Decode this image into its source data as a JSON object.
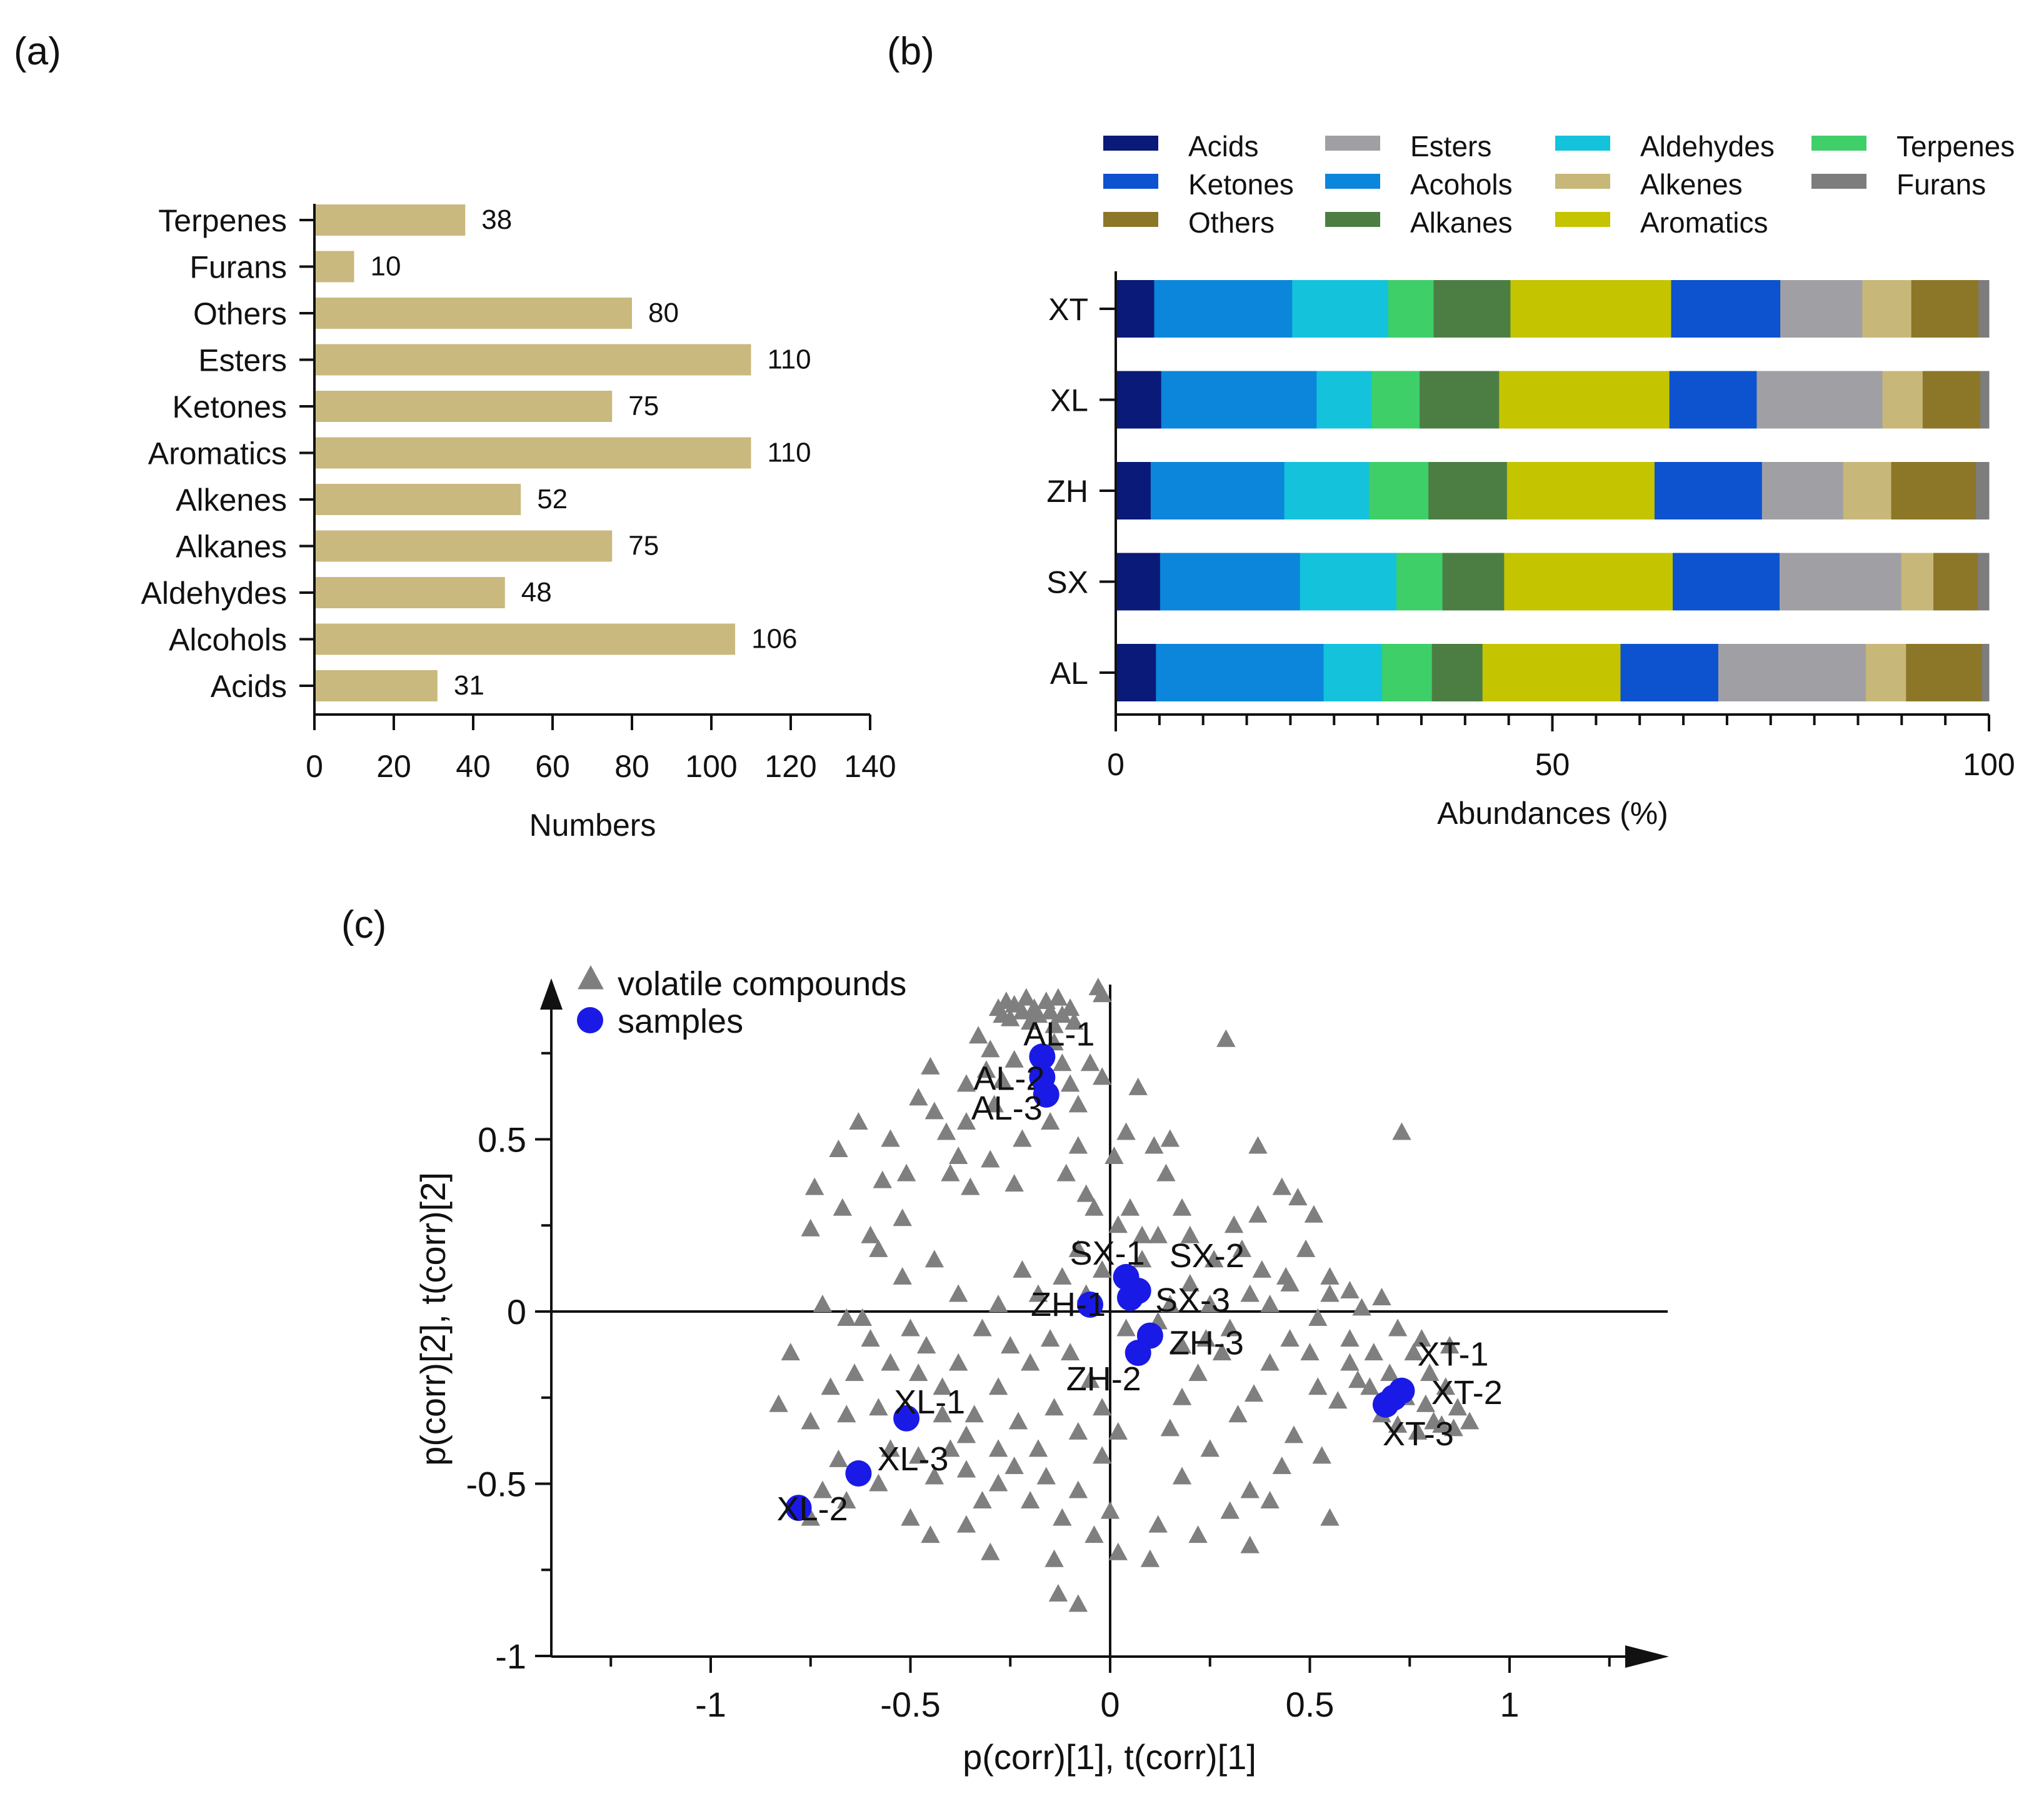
{
  "chart_data": [
    {
      "panel_label": "(a)",
      "type": "bar",
      "orientation": "horizontal",
      "categories": [
        "Terpenes",
        "Furans",
        "Others",
        "Esters",
        "Ketones",
        "Aromatics",
        "Alkenes",
        "Alkanes",
        "Aldehydes",
        "Alcohols",
        "Acids"
      ],
      "values": [
        38,
        10,
        80,
        110,
        75,
        110,
        52,
        75,
        48,
        106,
        31
      ],
      "value_labels": [
        "38",
        "10",
        "80",
        "110",
        "75",
        "110",
        "52",
        "75",
        "48",
        "106",
        "31"
      ],
      "bar_color": "#c9b97e",
      "xlabel": "Numbers",
      "xlim": [
        0,
        140
      ],
      "xticks": [
        "0",
        "20",
        "40",
        "60",
        "80",
        "100",
        "120",
        "140"
      ]
    },
    {
      "panel_label": "(b)",
      "type": "bar",
      "stacked": true,
      "orientation": "horizontal",
      "categories": [
        "XT",
        "XL",
        "ZH",
        "SX",
        "AL"
      ],
      "series": [
        {
          "name": "Acids",
          "color": "#0a1a78",
          "values": [
            4.4,
            5.2,
            4.0,
            5.1,
            4.6
          ]
        },
        {
          "name": "Acohols",
          "color": "#0b86db",
          "values": [
            15.8,
            17.8,
            15.3,
            16.1,
            19.2
          ]
        },
        {
          "name": "Aldehydes",
          "color": "#14c2dc",
          "values": [
            11.0,
            6.3,
            9.7,
            11.1,
            6.7
          ]
        },
        {
          "name": "Terpenes",
          "color": "#3ecf68",
          "values": [
            5.2,
            5.5,
            6.8,
            5.3,
            5.7
          ]
        },
        {
          "name": "Alkanes",
          "color": "#4c7e44",
          "values": [
            8.8,
            9.1,
            9.0,
            7.1,
            5.8
          ]
        },
        {
          "name": "Aromatics",
          "color": "#c4c400",
          "values": [
            18.4,
            19.5,
            16.9,
            19.4,
            15.8
          ]
        },
        {
          "name": "Ketones",
          "color": "#0d52cf",
          "values": [
            12.5,
            10.0,
            12.3,
            12.3,
            11.2
          ]
        },
        {
          "name": "Esters",
          "color": "#a0a0a4",
          "values": [
            9.4,
            14.4,
            9.3,
            14.0,
            16.9
          ]
        },
        {
          "name": "Alkenes",
          "color": "#c7b87a",
          "values": [
            5.6,
            4.6,
            5.5,
            3.7,
            4.6
          ]
        },
        {
          "name": "Others",
          "color": "#8c7628",
          "values": [
            7.7,
            6.6,
            9.7,
            5.1,
            8.7
          ]
        },
        {
          "name": "Furans",
          "color": "#7d7d7d",
          "values": [
            1.2,
            1.0,
            1.5,
            1.3,
            0.8
          ]
        }
      ],
      "legend_order": [
        "Acids",
        "Ketones",
        "Others",
        "Esters",
        "Acohols",
        "Alkanes",
        "Aldehydes",
        "Alkenes",
        "Aromatics",
        "Terpenes",
        "Furans"
      ],
      "xlabel": "Abundances (%)",
      "xlim": [
        0,
        100
      ],
      "xticks": [
        "0",
        "50",
        "100"
      ]
    },
    {
      "panel_label": "(c)",
      "type": "scatter",
      "xlabel": "p(corr)[1], t(corr)[1]",
      "ylabel": "p(corr)[2], t(corr)[2]",
      "xlim": [
        -1.4,
        1.4
      ],
      "ylim": [
        -1,
        1
      ],
      "xticks": [
        -1,
        -0.5,
        0,
        0.5,
        1
      ],
      "xtick_labels": [
        "-1",
        "-0.5",
        "0",
        "0.5",
        "1"
      ],
      "yticks": [
        -1,
        -0.5,
        0,
        0.5
      ],
      "ytick_labels": [
        "-1",
        "-0.5",
        "0",
        "0.5"
      ],
      "legend": [
        {
          "label": "volatile compounds",
          "marker": "triangle",
          "color": "#7f7f7f"
        },
        {
          "label": "samples",
          "marker": "circle",
          "color": "#1a1ae6"
        }
      ],
      "samples": [
        {
          "label": "AL-1",
          "x": -0.17,
          "y": 0.74
        },
        {
          "label": "AL-2",
          "x": -0.17,
          "y": 0.68
        },
        {
          "label": "AL-3",
          "x": -0.16,
          "y": 0.63
        },
        {
          "label": "SX-1",
          "x": 0.04,
          "y": 0.1
        },
        {
          "label": "SX-2",
          "x": 0.07,
          "y": 0.06
        },
        {
          "label": "SX-3",
          "x": 0.05,
          "y": 0.04
        },
        {
          "label": "ZH-1",
          "x": -0.05,
          "y": 0.02
        },
        {
          "label": "ZH-2",
          "x": 0.07,
          "y": -0.12
        },
        {
          "label": "ZH-3",
          "x": 0.1,
          "y": -0.07
        },
        {
          "label": "XT-1",
          "x": 0.73,
          "y": -0.23
        },
        {
          "label": "XT-2",
          "x": 0.71,
          "y": -0.25
        },
        {
          "label": "XT-3",
          "x": 0.69,
          "y": -0.27
        },
        {
          "label": "XL-1",
          "x": -0.51,
          "y": -0.31
        },
        {
          "label": "XL-2",
          "x": -0.78,
          "y": -0.57
        },
        {
          "label": "XL-3",
          "x": -0.63,
          "y": -0.47
        }
      ],
      "volatile_compounds": [
        [
          -0.28,
          0.88
        ],
        [
          -0.27,
          0.86
        ],
        [
          -0.26,
          0.9
        ],
        [
          -0.25,
          0.85
        ],
        [
          -0.24,
          0.89
        ],
        [
          -0.22,
          0.87
        ],
        [
          -0.21,
          0.91
        ],
        [
          -0.2,
          0.84
        ],
        [
          -0.19,
          0.88
        ],
        [
          -0.18,
          0.86
        ],
        [
          -0.16,
          0.9
        ],
        [
          -0.15,
          0.87
        ],
        [
          -0.14,
          0.83
        ],
        [
          -0.13,
          0.91
        ],
        [
          -0.12,
          0.86
        ],
        [
          -0.1,
          0.88
        ],
        [
          -0.09,
          0.84
        ],
        [
          -0.03,
          0.94
        ],
        [
          -0.02,
          0.92
        ],
        [
          0.29,
          0.79
        ],
        [
          -0.33,
          0.8
        ],
        [
          -0.3,
          0.76
        ],
        [
          -0.31,
          0.7
        ],
        [
          -0.27,
          0.67
        ],
        [
          -0.24,
          0.73
        ],
        [
          -0.36,
          0.66
        ],
        [
          -0.45,
          0.71
        ],
        [
          -0.48,
          0.62
        ],
        [
          -0.44,
          0.58
        ],
        [
          -0.41,
          0.52
        ],
        [
          -0.36,
          0.55
        ],
        [
          -0.38,
          0.45
        ],
        [
          -0.29,
          0.6
        ],
        [
          -0.14,
          0.78
        ],
        [
          -0.12,
          0.72
        ],
        [
          -0.1,
          0.66
        ],
        [
          -0.08,
          0.6
        ],
        [
          -0.05,
          0.72
        ],
        [
          -0.02,
          0.68
        ],
        [
          0.07,
          0.65
        ],
        [
          -0.63,
          0.55
        ],
        [
          -0.55,
          0.5
        ],
        [
          -0.51,
          0.4
        ],
        [
          -0.57,
          0.38
        ],
        [
          -0.68,
          0.47
        ],
        [
          -0.74,
          0.36
        ],
        [
          -0.75,
          0.24
        ],
        [
          -0.67,
          0.3
        ],
        [
          -0.6,
          0.22
        ],
        [
          -0.52,
          0.27
        ],
        [
          -0.4,
          0.4
        ],
        [
          -0.35,
          0.36
        ],
        [
          -0.3,
          0.44
        ],
        [
          -0.24,
          0.37
        ],
        [
          -0.22,
          0.5
        ],
        [
          -0.15,
          0.55
        ],
        [
          -0.08,
          0.48
        ],
        [
          -0.11,
          0.4
        ],
        [
          -0.06,
          0.34
        ],
        [
          0.01,
          0.45
        ],
        [
          0.04,
          0.52
        ],
        [
          0.11,
          0.48
        ],
        [
          0.15,
          0.5
        ],
        [
          0.14,
          0.4
        ],
        [
          0.18,
          0.3
        ],
        [
          0.12,
          0.22
        ],
        [
          0.2,
          0.22
        ],
        [
          0.26,
          0.15
        ],
        [
          0.31,
          0.25
        ],
        [
          0.37,
          0.28
        ],
        [
          0.37,
          0.48
        ],
        [
          0.43,
          0.36
        ],
        [
          0.47,
          0.33
        ],
        [
          0.51,
          0.28
        ],
        [
          0.73,
          0.52
        ],
        [
          0.55,
          0.1
        ],
        [
          0.6,
          0.06
        ],
        [
          0.63,
          0.01
        ],
        [
          0.68,
          0.04
        ],
        [
          0.72,
          -0.05
        ],
        [
          0.76,
          -0.12
        ],
        [
          0.8,
          -0.18
        ],
        [
          0.84,
          -0.22
        ],
        [
          0.87,
          -0.28
        ],
        [
          0.9,
          -0.32
        ],
        [
          0.85,
          -0.1
        ],
        [
          0.78,
          -0.08
        ],
        [
          0.83,
          -0.33
        ],
        [
          0.77,
          -0.35
        ],
        [
          0.72,
          -0.33
        ],
        [
          0.68,
          -0.3
        ],
        [
          0.65,
          -0.22
        ],
        [
          0.6,
          -0.15
        ],
        [
          0.57,
          -0.26
        ],
        [
          0.52,
          -0.22
        ],
        [
          0.5,
          -0.12
        ],
        [
          0.45,
          -0.08
        ],
        [
          0.4,
          -0.15
        ],
        [
          0.36,
          -0.24
        ],
        [
          0.32,
          -0.3
        ],
        [
          0.46,
          -0.36
        ],
        [
          0.43,
          -0.45
        ],
        [
          0.53,
          -0.42
        ],
        [
          0.4,
          -0.55
        ],
        [
          0.55,
          -0.6
        ],
        [
          0.35,
          -0.52
        ],
        [
          0.25,
          -0.4
        ],
        [
          0.3,
          -0.58
        ],
        [
          0.22,
          -0.65
        ],
        [
          0.35,
          -0.68
        ],
        [
          0.18,
          -0.48
        ],
        [
          0.12,
          -0.62
        ],
        [
          0.1,
          -0.72
        ],
        [
          0.02,
          -0.7
        ],
        [
          0.15,
          -0.34
        ],
        [
          0.18,
          -0.25
        ],
        [
          0.22,
          -0.18
        ],
        [
          0.28,
          -0.12
        ],
        [
          0.25,
          0.02
        ],
        [
          0.3,
          -0.05
        ],
        [
          0.35,
          0.05
        ],
        [
          0.4,
          0.02
        ],
        [
          0.44,
          0.1
        ],
        [
          0.38,
          0.12
        ],
        [
          0.33,
          0.18
        ],
        [
          0.2,
          0.08
        ],
        [
          0.15,
          0.02
        ],
        [
          0.12,
          -0.03
        ],
        [
          0.18,
          -0.1
        ],
        [
          0.24,
          -0.08
        ],
        [
          -0.08,
          0.18
        ],
        [
          -0.12,
          0.1
        ],
        [
          -0.18,
          0.05
        ],
        [
          -0.22,
          0.12
        ],
        [
          -0.28,
          0.02
        ],
        [
          -0.32,
          -0.05
        ],
        [
          -0.25,
          -0.1
        ],
        [
          -0.2,
          -0.15
        ],
        [
          -0.15,
          -0.08
        ],
        [
          -0.1,
          -0.12
        ],
        [
          -0.05,
          -0.2
        ],
        [
          -0.02,
          -0.28
        ],
        [
          -0.08,
          -0.35
        ],
        [
          -0.14,
          -0.28
        ],
        [
          -0.18,
          -0.4
        ],
        [
          -0.23,
          -0.32
        ],
        [
          -0.28,
          -0.22
        ],
        [
          -0.34,
          -0.3
        ],
        [
          -0.38,
          -0.15
        ],
        [
          -0.42,
          -0.22
        ],
        [
          -0.46,
          -0.1
        ],
        [
          -0.5,
          -0.05
        ],
        [
          -0.55,
          -0.15
        ],
        [
          -0.6,
          -0.08
        ],
        [
          -0.64,
          -0.18
        ],
        [
          -0.58,
          -0.28
        ],
        [
          -0.66,
          -0.3
        ],
        [
          -0.7,
          -0.22
        ],
        [
          -0.75,
          -0.32
        ],
        [
          -0.8,
          -0.12
        ],
        [
          -0.83,
          -0.27
        ],
        [
          -0.68,
          -0.43
        ],
        [
          -0.72,
          -0.52
        ],
        [
          -0.75,
          -0.6
        ],
        [
          -0.66,
          -0.55
        ],
        [
          -0.58,
          -0.5
        ],
        [
          -0.55,
          -0.4
        ],
        [
          -0.48,
          -0.42
        ],
        [
          -0.44,
          -0.48
        ],
        [
          -0.4,
          -0.4
        ],
        [
          -0.36,
          -0.46
        ],
        [
          -0.32,
          -0.55
        ],
        [
          -0.28,
          -0.5
        ],
        [
          -0.24,
          -0.45
        ],
        [
          -0.2,
          -0.55
        ],
        [
          -0.16,
          -0.48
        ],
        [
          -0.12,
          -0.6
        ],
        [
          -0.08,
          -0.52
        ],
        [
          -0.04,
          -0.65
        ],
        [
          0.0,
          -0.58
        ],
        [
          -0.36,
          -0.62
        ],
        [
          -0.3,
          -0.7
        ],
        [
          -0.45,
          -0.65
        ],
        [
          -0.5,
          -0.6
        ],
        [
          -0.14,
          -0.72
        ],
        [
          -0.13,
          -0.82
        ],
        [
          -0.08,
          -0.85
        ],
        [
          -0.02,
          -0.42
        ],
        [
          0.02,
          -0.35
        ],
        [
          -0.38,
          0.05
        ],
        [
          -0.44,
          0.15
        ],
        [
          -0.52,
          0.1
        ],
        [
          -0.58,
          0.18
        ],
        [
          -0.66,
          -0.02
        ],
        [
          -0.72,
          0.02
        ],
        [
          -0.62,
          -0.02
        ],
        [
          -0.48,
          -0.18
        ],
        [
          -0.42,
          -0.3
        ],
        [
          -0.36,
          -0.36
        ],
        [
          -0.28,
          -0.4
        ],
        [
          0.05,
          0.3
        ],
        [
          0.08,
          0.22
        ],
        [
          0.02,
          0.25
        ],
        [
          -0.04,
          0.3
        ],
        [
          -0.02,
          0.12
        ],
        [
          0.04,
          -0.05
        ],
        [
          0.08,
          0.15
        ],
        [
          -0.06,
          0.05
        ],
        [
          0.55,
          0.05
        ],
        [
          0.6,
          -0.08
        ],
        [
          0.66,
          -0.12
        ],
        [
          0.62,
          -0.2
        ],
        [
          0.7,
          -0.18
        ],
        [
          0.74,
          -0.25
        ],
        [
          0.79,
          -0.27
        ],
        [
          0.81,
          -0.32
        ],
        [
          0.86,
          -0.34
        ],
        [
          0.45,
          0.08
        ],
        [
          0.49,
          0.18
        ],
        [
          0.52,
          -0.02
        ]
      ]
    }
  ]
}
